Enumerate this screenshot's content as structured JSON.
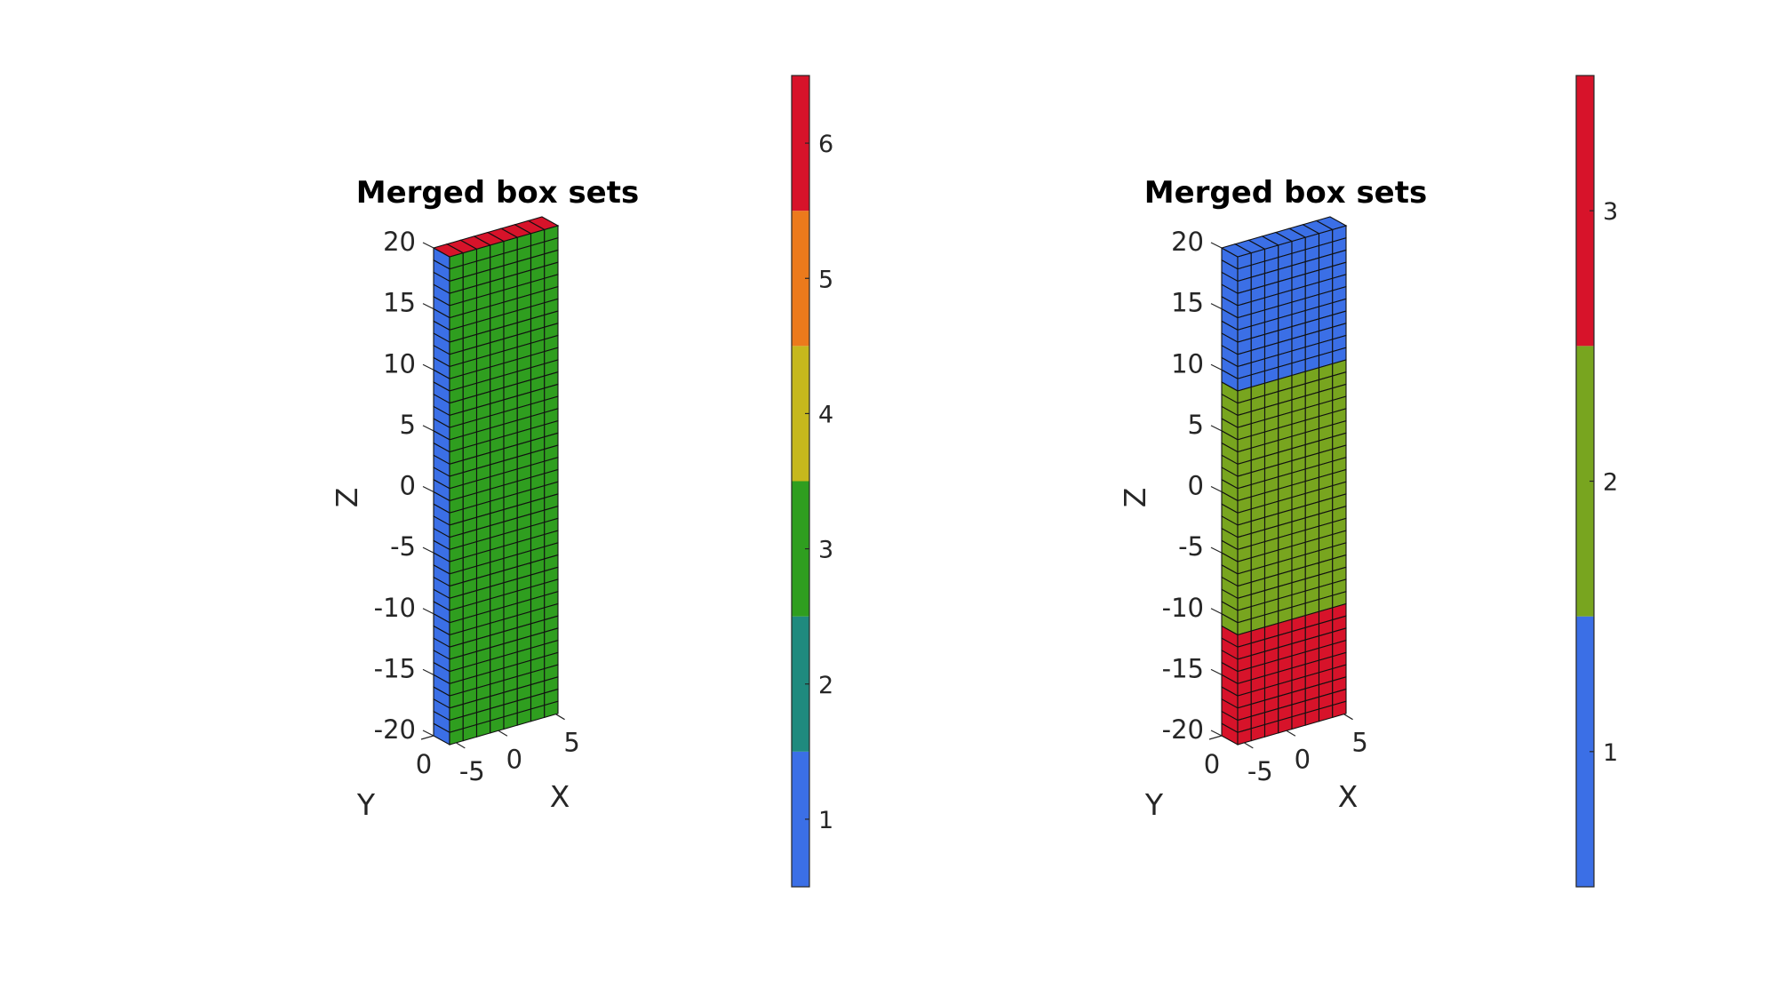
{
  "chart_data": [
    {
      "type": "3d-voxel",
      "title": "Merged box sets",
      "xlabel": "X",
      "ylabel": "Y",
      "zlabel": "Z",
      "x_ticks": [
        "-5",
        "0",
        "5"
      ],
      "y_ticks": [
        "0"
      ],
      "z_ticks": [
        "20",
        "15",
        "10",
        "5",
        "0",
        "-5",
        "-10",
        "-15",
        "-20"
      ],
      "xlim": [
        -7,
        7
      ],
      "ylim": [
        -1,
        1
      ],
      "zlim": [
        -20,
        20
      ],
      "grid": "8 x 1 x 40 cells",
      "faces": {
        "front": 3,
        "side": 1,
        "top": 6
      },
      "colorbar": {
        "min": 0.5,
        "max": 6.5,
        "ticks": [
          "1",
          "2",
          "3",
          "4",
          "5",
          "6"
        ],
        "colors": [
          "#3b6fe6",
          "#1f8a7e",
          "#2f9e1f",
          "#c6b81d",
          "#ec7a1c",
          "#d7132a"
        ]
      }
    },
    {
      "type": "3d-voxel",
      "title": "Merged box sets",
      "xlabel": "X",
      "ylabel": "Y",
      "zlabel": "Z",
      "x_ticks": [
        "-5",
        "0",
        "5"
      ],
      "y_ticks": [
        "0"
      ],
      "z_ticks": [
        "20",
        "15",
        "10",
        "5",
        "0",
        "-5",
        "-10",
        "-15",
        "-20"
      ],
      "xlim": [
        -7,
        7
      ],
      "ylim": [
        -1,
        1
      ],
      "zlim": [
        -20,
        20
      ],
      "grid": "8 x 1 x 40 cells",
      "z_bands": [
        {
          "from": 9.3,
          "to": 20,
          "value": 1
        },
        {
          "from": -10.7,
          "to": 9.3,
          "value": 2
        },
        {
          "from": -20,
          "to": -10.7,
          "value": 3
        }
      ],
      "colorbar": {
        "min": 0.5,
        "max": 3.5,
        "ticks": [
          "1",
          "2",
          "3"
        ],
        "colors": [
          "#3b6fe6",
          "#78a51f",
          "#d7132a"
        ]
      }
    }
  ]
}
